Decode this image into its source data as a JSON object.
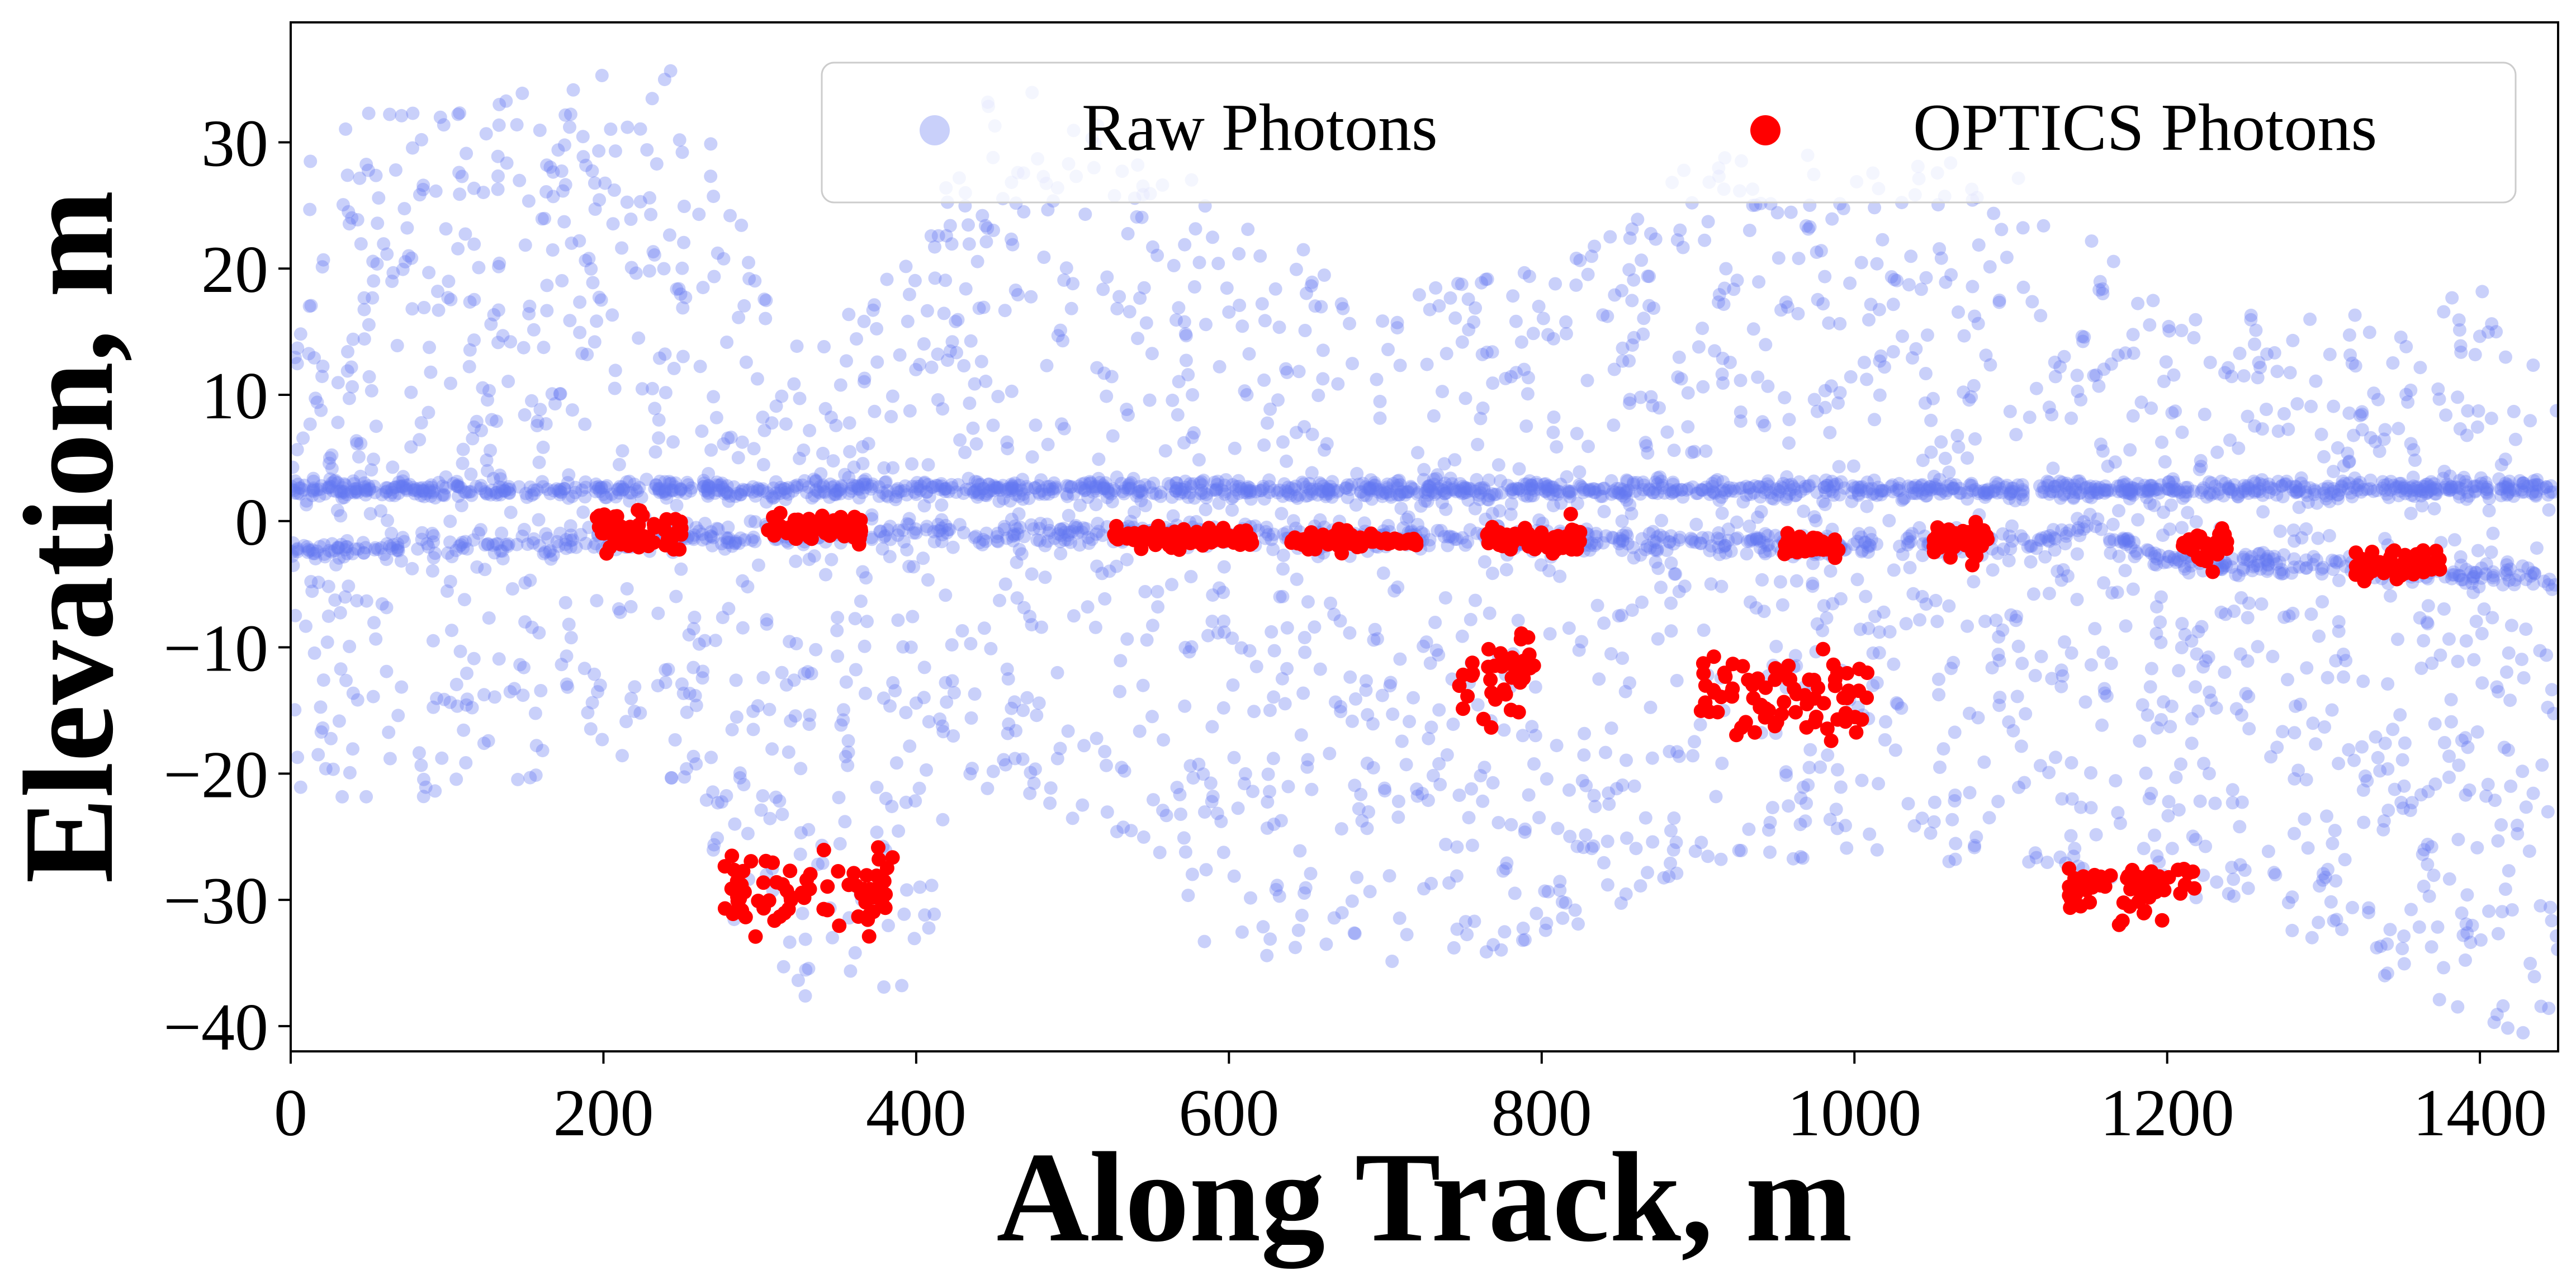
{
  "chart_data": {
    "type": "scatter",
    "xlabel": "Along Track, m",
    "ylabel": "Elevation, m",
    "xlim": [
      0,
      1450
    ],
    "ylim": [
      -42,
      39.5
    ],
    "xticks": [
      0,
      200,
      400,
      600,
      800,
      1000,
      1200,
      1400
    ],
    "xtick_labels": [
      "0",
      "200",
      "400",
      "600",
      "800",
      "1000",
      "1200",
      "1400"
    ],
    "yticks": [
      -40,
      -30,
      -20,
      -10,
      0,
      10,
      20,
      30
    ],
    "ytick_labels": [
      "−40",
      "−30",
      "−20",
      "−10",
      "0",
      "10",
      "20",
      "30"
    ],
    "grid": false,
    "legend_position": "upper right",
    "series": [
      {
        "name": "Raw Photons",
        "color": "#6478f0",
        "alpha": 0.35,
        "description_points": "noise photons scattered uniformly between about -40 and 38 m plus a dense surface band near 2.5 m and a lower band near -1.5 m",
        "surface_band_y": 2.5,
        "lower_band": [
          [
            0,
            -2.5
          ],
          [
            200,
            -1.5
          ],
          [
            400,
            -0.8
          ],
          [
            600,
            -1.2
          ],
          [
            800,
            -1.5
          ],
          [
            1000,
            -1.8
          ],
          [
            1100,
            -1.8
          ],
          [
            1150,
            -0.5
          ],
          [
            1200,
            -3.0
          ],
          [
            1300,
            -3.5
          ],
          [
            1450,
            -4.5
          ]
        ],
        "noise_top_profile": [
          [
            0,
            31
          ],
          [
            150,
            35
          ],
          [
            250,
            36
          ],
          [
            320,
            14
          ],
          [
            400,
            21
          ],
          [
            450,
            37
          ],
          [
            520,
            32
          ],
          [
            600,
            25
          ],
          [
            700,
            18
          ],
          [
            800,
            20
          ],
          [
            900,
            29
          ],
          [
            1000,
            29
          ],
          [
            1100,
            28
          ],
          [
            1200,
            17
          ],
          [
            1300,
            16
          ],
          [
            1400,
            19
          ],
          [
            1450,
            12
          ]
        ],
        "noise_bottom_profile": [
          [
            0,
            -22
          ],
          [
            100,
            -22
          ],
          [
            200,
            -19
          ],
          [
            250,
            -21
          ],
          [
            300,
            -38
          ],
          [
            400,
            -37
          ],
          [
            450,
            -20
          ],
          [
            550,
            -28
          ],
          [
            600,
            -36
          ],
          [
            700,
            -35
          ],
          [
            800,
            -34
          ],
          [
            900,
            -27
          ],
          [
            1000,
            -27
          ],
          [
            1100,
            -27
          ],
          [
            1150,
            -30
          ],
          [
            1250,
            -31
          ],
          [
            1350,
            -37
          ],
          [
            1450,
            -42
          ]
        ]
      },
      {
        "name": "OPTICS Photons",
        "color": "#ff0000",
        "clusters": [
          {
            "x_range": [
              195,
              250
            ],
            "y_center": -1.0,
            "y_spread": 1.2
          },
          {
            "x_range": [
              305,
              365
            ],
            "y_center": -0.5,
            "y_spread": 0.8
          },
          {
            "x_range": [
              525,
              615
            ],
            "y_center": -1.4,
            "y_spread": 0.6
          },
          {
            "x_range": [
              640,
              685
            ],
            "y_center": -1.5,
            "y_spread": 0.6
          },
          {
            "x_range": [
              690,
              720
            ],
            "y_center": -1.6,
            "y_spread": 0.4
          },
          {
            "x_range": [
              765,
              825
            ],
            "y_center": -1.5,
            "y_spread": 0.8
          },
          {
            "x_range": [
              955,
              990
            ],
            "y_center": -2.0,
            "y_spread": 0.7
          },
          {
            "x_range": [
              1050,
              1090
            ],
            "y_center": -1.5,
            "y_spread": 1.2
          },
          {
            "x_range": [
              1210,
              1240
            ],
            "y_center": -2.0,
            "y_spread": 1.2
          },
          {
            "x_range": [
              1320,
              1375
            ],
            "y_center": -3.5,
            "y_spread": 1.0
          },
          {
            "x_range": [
              275,
              385
            ],
            "y_center": -29.5,
            "y_spread": 2.5
          },
          {
            "x_range": [
              745,
              795
            ],
            "y_center": -12.5,
            "y_spread": 3.0
          },
          {
            "x_range": [
              900,
              1010
            ],
            "y_center": -14.0,
            "y_spread": 2.5
          },
          {
            "x_range": [
              1135,
              1220
            ],
            "y_center": -29.0,
            "y_spread": 2.0
          }
        ]
      }
    ]
  }
}
